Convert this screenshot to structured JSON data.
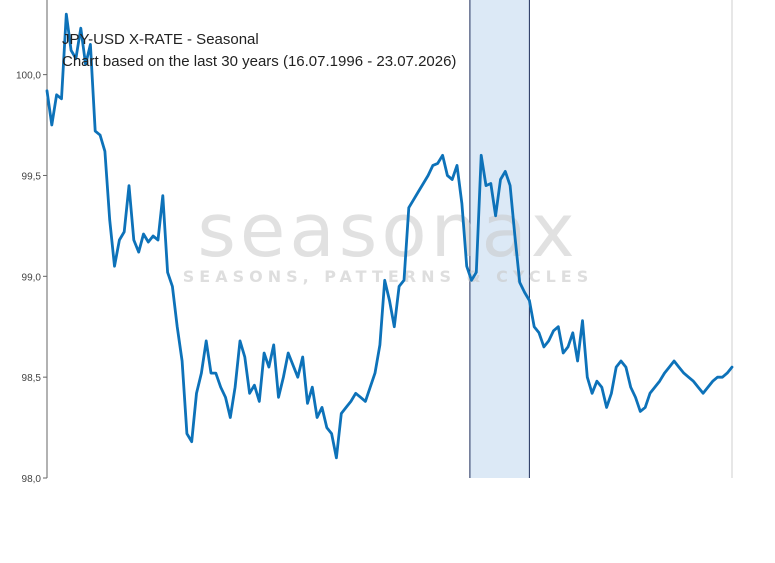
{
  "chart_data": {
    "type": "line",
    "title": "JPY-USD X-RATE - Seasonal",
    "subtitle": "Chart based on the last 30 years (16.07.1996 - 23.07.2026)",
    "watermark": {
      "main": "seasonax",
      "sub": "SEASONS, PATTERNS & CYCLES"
    },
    "ylim": [
      98.0,
      100.37
    ],
    "y_ticks": [
      100.0,
      99.5,
      99.0,
      98.5,
      98.0
    ],
    "y_tick_labels": [
      "100,0",
      "99,5",
      "99,0",
      "98,5",
      "98,0"
    ],
    "grid": false,
    "highlight": {
      "x_range": [
        263,
        300
      ],
      "fill": "#dce9f6",
      "border": "#1c2d5a"
    },
    "colors": {
      "line": "#0d72b9"
    },
    "series": [
      {
        "x": [
          0,
          3,
          6,
          9,
          12,
          15,
          18,
          21,
          24,
          27,
          30,
          33,
          36,
          39,
          42,
          45,
          48,
          51,
          54,
          57,
          60,
          63,
          66,
          69,
          72,
          75,
          78,
          81,
          84,
          87,
          90,
          93,
          96,
          99,
          102,
          105,
          108,
          111,
          114,
          117,
          120,
          123,
          126,
          129,
          132,
          135,
          138,
          141,
          144,
          147,
          150,
          153,
          156,
          159,
          162,
          165,
          168,
          171,
          174,
          177,
          180,
          183,
          186,
          189,
          192,
          195,
          198,
          201,
          204,
          207,
          210,
          213,
          216,
          219,
          222,
          225,
          228,
          231,
          234,
          237,
          240,
          243,
          246,
          249,
          252,
          255,
          258,
          261,
          264,
          267,
          270,
          273,
          276,
          279,
          282,
          285,
          288,
          291,
          294,
          297,
          300,
          303,
          306,
          309,
          312,
          315,
          318,
          321,
          324,
          327,
          330,
          333,
          336,
          339,
          342,
          345,
          348,
          351,
          354,
          357,
          360,
          363,
          366,
          369,
          372,
          375,
          378,
          381,
          384,
          387,
          390,
          393,
          396,
          399,
          402,
          405,
          408,
          411,
          414,
          417,
          420,
          423,
          426
        ],
        "values": [
          99.92,
          99.75,
          99.9,
          99.88,
          100.3,
          100.12,
          100.08,
          100.23,
          100.05,
          100.15,
          99.72,
          99.7,
          99.62,
          99.28,
          99.05,
          99.18,
          99.22,
          99.45,
          99.18,
          99.12,
          99.21,
          99.17,
          99.2,
          99.18,
          99.4,
          99.02,
          98.95,
          98.75,
          98.58,
          98.22,
          98.18,
          98.42,
          98.52,
          98.68,
          98.52,
          98.52,
          98.45,
          98.4,
          98.3,
          98.45,
          98.68,
          98.6,
          98.42,
          98.46,
          98.38,
          98.62,
          98.55,
          98.66,
          98.4,
          98.5,
          98.62,
          98.56,
          98.5,
          98.6,
          98.37,
          98.45,
          98.3,
          98.35,
          98.25,
          98.22,
          98.1,
          98.32,
          98.35,
          98.38,
          98.42,
          98.4,
          98.38,
          98.45,
          98.52,
          98.66,
          98.98,
          98.88,
          98.75,
          98.95,
          98.98,
          99.34,
          99.38,
          99.42,
          99.46,
          99.5,
          99.55,
          99.56,
          99.6,
          99.5,
          99.48,
          99.55,
          99.36,
          99.05,
          98.98,
          99.02,
          99.6,
          99.45,
          99.46,
          99.3,
          99.48,
          99.52,
          99.45,
          99.2,
          98.97,
          98.92,
          98.88,
          98.75,
          98.72,
          98.65,
          98.68,
          98.73,
          98.75,
          98.62,
          98.65,
          98.72,
          98.58,
          98.78,
          98.5,
          98.42,
          98.48,
          98.45,
          98.35,
          98.42,
          98.55,
          98.58,
          98.55,
          98.45,
          98.4,
          98.33,
          98.35,
          98.42,
          98.45,
          98.48,
          98.52,
          98.55,
          98.58,
          98.55,
          98.52,
          98.5,
          98.48,
          98.45,
          98.42,
          98.45,
          98.48,
          98.5,
          98.5,
          98.52,
          98.55
        ]
      }
    ]
  }
}
